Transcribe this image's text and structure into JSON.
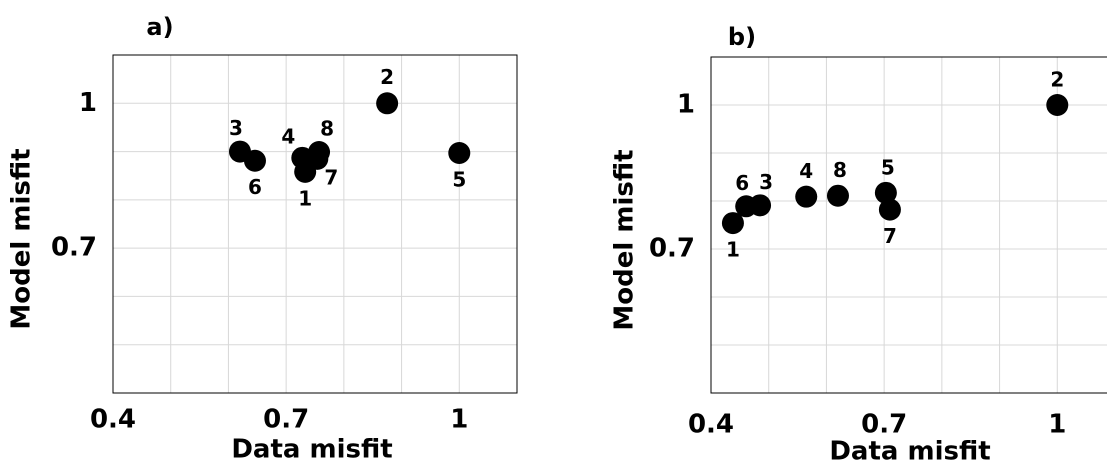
{
  "chart_data": [
    {
      "type": "scatter",
      "title": "a)",
      "xlabel": "Data misfit",
      "ylabel": "Model misfit",
      "xlim": [
        0.4,
        1.1
      ],
      "ylim": [
        0.4,
        1.1
      ],
      "xticks": [
        0.4,
        0.7,
        1.0
      ],
      "yticks": [
        0.7,
        1.0
      ],
      "xminor": [
        0.5,
        0.6,
        0.8,
        0.9,
        1.1
      ],
      "yminor": [
        0.5,
        0.6,
        0.8,
        0.9
      ],
      "grid": true,
      "color": "#000000",
      "point_labels": [
        "1",
        "2",
        "3",
        "4",
        "5",
        "6",
        "7",
        "8"
      ],
      "x": [
        0.733,
        0.875,
        0.62,
        0.728,
        1.0,
        0.646,
        0.754,
        0.757
      ],
      "values": [
        0.858,
        1.0,
        0.9,
        0.887,
        0.897,
        0.881,
        0.885,
        0.899
      ]
    },
    {
      "type": "scatter",
      "title": "b)",
      "xlabel": "Data misfit",
      "ylabel": "Model misfit",
      "xlim": [
        0.4,
        1.1
      ],
      "ylim": [
        0.4,
        1.1
      ],
      "xticks": [
        0.4,
        0.7,
        1.0
      ],
      "yticks": [
        0.7,
        1.0
      ],
      "xminor": [
        0.5,
        0.6,
        0.8,
        0.9,
        1.1
      ],
      "yminor": [
        0.5,
        0.6,
        0.8,
        0.9
      ],
      "grid": true,
      "color": "#000000",
      "point_labels": [
        "1",
        "2",
        "3",
        "4",
        "5",
        "6",
        "7",
        "8"
      ],
      "x": [
        0.438,
        1.0,
        0.485,
        0.565,
        0.703,
        0.461,
        0.71,
        0.62
      ],
      "values": [
        0.754,
        1.0,
        0.791,
        0.809,
        0.817,
        0.789,
        0.782,
        0.811
      ]
    }
  ]
}
